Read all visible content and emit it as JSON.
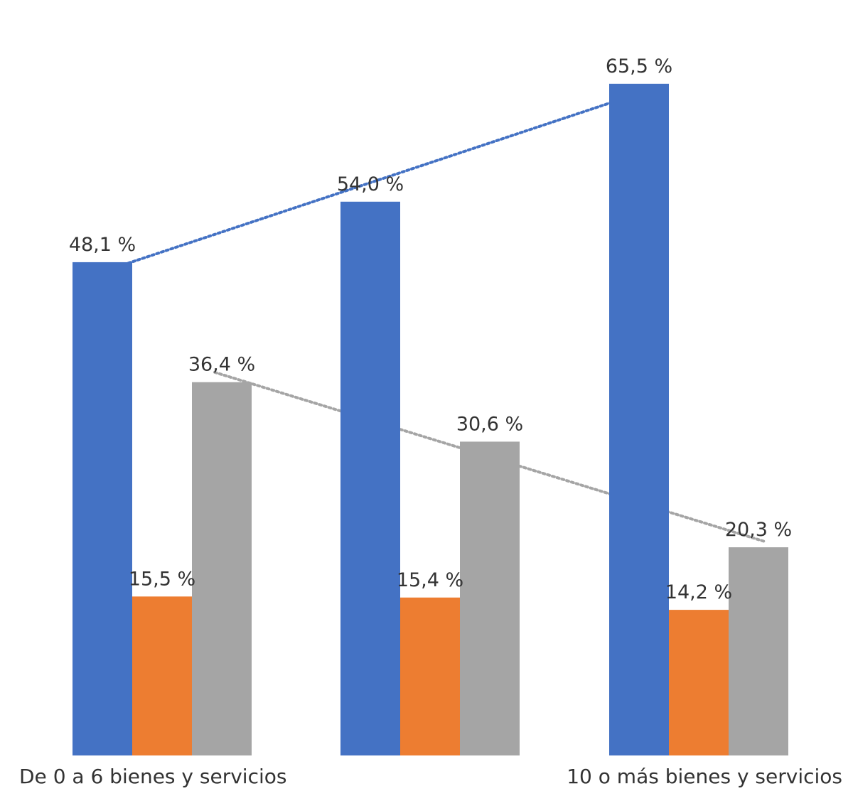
{
  "chart_data": {
    "type": "bar",
    "title": "",
    "xlabel": "",
    "ylabel": "",
    "ylim": [
      0,
      70
    ],
    "grid": false,
    "legend": "none",
    "categories": [
      "De 0 a 6 bienes y servicios",
      "",
      "10 o más bienes y servicios"
    ],
    "series": [
      {
        "color": "#4472C4",
        "values": [
          48.1,
          54.0,
          65.5
        ],
        "labels": [
          "48,1 %",
          "54,0 %",
          "65,5 %"
        ]
      },
      {
        "color": "#ED7D31",
        "values": [
          15.5,
          15.4,
          14.2
        ],
        "labels": [
          "15,5 %",
          "15,4 %",
          "14,2 %"
        ]
      },
      {
        "color": "#A5A5A5",
        "values": [
          36.4,
          30.6,
          20.3
        ],
        "labels": [
          "36,4 %",
          "30,6 %",
          "20,3 %"
        ]
      }
    ],
    "trendlines": [
      {
        "series_index": 0,
        "style": "dotted",
        "color": "#4472C4"
      },
      {
        "series_index": 2,
        "style": "dotted",
        "color": "#A5A5A5"
      }
    ]
  }
}
